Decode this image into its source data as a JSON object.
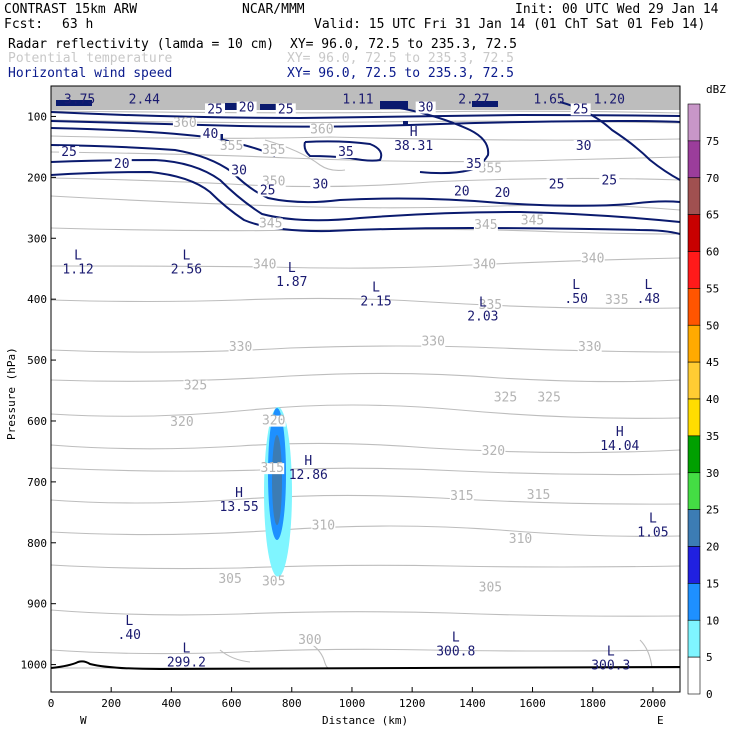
{
  "header": {
    "model": "CONTRAST 15km ARW",
    "center": "NCAR/MMM",
    "init": "Init: 00 UTC Wed 29 Jan 14",
    "fcst_label": "Fcst:",
    "fcst_value": "63 h",
    "valid": "Valid: 15 UTC Fri 31 Jan 14 (01 ChT Sat 01 Feb 14)",
    "fields": [
      {
        "name": "Radar reflectivity (lamda = 10 cm)",
        "xy": "XY=  96.0, 72.5 to 235.3, 72.5",
        "color": "#000000"
      },
      {
        "name": "Potential temperature",
        "xy": "XY=  96.0, 72.5 to 235.3, 72.5",
        "color": "#c8c8c8"
      },
      {
        "name": "Horizontal wind speed",
        "xy": "XY=  96.0, 72.5 to 235.3, 72.5",
        "color": "#0a1a8c"
      }
    ]
  },
  "chart_data": {
    "type": "cross-section",
    "xlabel": "Distance (km)",
    "ylabel": "Pressure (hPa)",
    "xlim": [
      0,
      2090
    ],
    "ylim": [
      50,
      1045
    ],
    "x_ticks": [
      "0",
      "200",
      "400",
      "600",
      "800",
      "1000",
      "1200",
      "1400",
      "1600",
      "1800",
      "2000"
    ],
    "y_ticks": [
      "100",
      "200",
      "300",
      "400",
      "500",
      "600",
      "700",
      "800",
      "900",
      "1000"
    ],
    "x_ends": {
      "left": "W",
      "right": "E"
    },
    "colorbar": {
      "unit": "dBZ",
      "levels": [
        "75",
        "70",
        "65",
        "60",
        "55",
        "50",
        "45",
        "40",
        "35",
        "30",
        "25",
        "20",
        "15",
        "10",
        "5",
        "0"
      ],
      "colors": [
        "#c896c8",
        "#9b3d9b",
        "#a05050",
        "#c80000",
        "#ff1a1a",
        "#ff5500",
        "#ffaa00",
        "#ffcc33",
        "#ffdd00",
        "#00a000",
        "#44dd44",
        "#3c7cb4",
        "#2020e0",
        "#1e90ff",
        "#7ff5ff",
        "#ffffff"
      ]
    },
    "wind_labels": [
      {
        "t": "25",
        "x": 545,
        "p": 95
      },
      {
        "t": "20",
        "x": 650,
        "p": 92
      },
      {
        "t": "25",
        "x": 780,
        "p": 95
      },
      {
        "t": "30",
        "x": 1245,
        "p": 92
      },
      {
        "t": "25",
        "x": 1760,
        "p": 95
      },
      {
        "t": "40",
        "x": 530,
        "p": 135
      },
      {
        "t": "25",
        "x": 60,
        "p": 165
      },
      {
        "t": "20",
        "x": 235,
        "p": 185
      },
      {
        "t": "35",
        "x": 980,
        "p": 165
      },
      {
        "t": "35",
        "x": 1405,
        "p": 185
      },
      {
        "t": "30",
        "x": 1770,
        "p": 155
      },
      {
        "t": "30",
        "x": 625,
        "p": 195
      },
      {
        "t": "30",
        "x": 895,
        "p": 218
      },
      {
        "t": "25",
        "x": 720,
        "p": 228
      },
      {
        "t": "20",
        "x": 1365,
        "p": 230
      },
      {
        "t": "20",
        "x": 1500,
        "p": 232
      },
      {
        "t": "25",
        "x": 1680,
        "p": 218
      },
      {
        "t": "25",
        "x": 1855,
        "p": 212
      }
    ],
    "theta_labels": [
      {
        "t": "360",
        "x": 445,
        "p": 117
      },
      {
        "t": "360",
        "x": 900,
        "p": 128
      },
      {
        "t": "355",
        "x": 600,
        "p": 155
      },
      {
        "t": "355",
        "x": 740,
        "p": 162
      },
      {
        "t": "355",
        "x": 1460,
        "p": 192
      },
      {
        "t": "350",
        "x": 740,
        "p": 213
      },
      {
        "t": "345",
        "x": 1445,
        "p": 285
      },
      {
        "t": "345",
        "x": 1600,
        "p": 277
      },
      {
        "t": "345",
        "x": 730,
        "p": 282
      },
      {
        "t": "340",
        "x": 710,
        "p": 350
      },
      {
        "t": "340",
        "x": 1440,
        "p": 350
      },
      {
        "t": "340",
        "x": 1800,
        "p": 340
      },
      {
        "t": "335",
        "x": 1460,
        "p": 416
      },
      {
        "t": "335",
        "x": 1880,
        "p": 408
      },
      {
        "t": "330",
        "x": 630,
        "p": 485
      },
      {
        "t": "330",
        "x": 1270,
        "p": 476
      },
      {
        "t": "330",
        "x": 1790,
        "p": 485
      },
      {
        "t": "325",
        "x": 480,
        "p": 548
      },
      {
        "t": "325",
        "x": 1510,
        "p": 568
      },
      {
        "t": "325",
        "x": 1655,
        "p": 568
      },
      {
        "t": "320",
        "x": 435,
        "p": 608
      },
      {
        "t": "320",
        "x": 740,
        "p": 606
      },
      {
        "t": "320",
        "x": 1470,
        "p": 656
      },
      {
        "t": "315",
        "x": 735,
        "p": 684
      },
      {
        "t": "315",
        "x": 1365,
        "p": 730
      },
      {
        "t": "315",
        "x": 1620,
        "p": 728
      },
      {
        "t": "310",
        "x": 905,
        "p": 778
      },
      {
        "t": "310",
        "x": 1560,
        "p": 800
      },
      {
        "t": "305",
        "x": 595,
        "p": 866
      },
      {
        "t": "305",
        "x": 740,
        "p": 870
      },
      {
        "t": "305",
        "x": 1460,
        "p": 880
      },
      {
        "t": "300",
        "x": 860,
        "p": 966
      }
    ],
    "top_band_labels": [
      {
        "t": "3.75",
        "x": 95,
        "p": 79
      },
      {
        "t": "2.44",
        "x": 310,
        "p": 79
      },
      {
        "t": "1.11",
        "x": 1020,
        "p": 79
      },
      {
        "t": "2.27",
        "x": 1405,
        "p": 79
      },
      {
        "t": "1.65",
        "x": 1655,
        "p": 79
      },
      {
        "t": "1.20",
        "x": 1855,
        "p": 79
      }
    ],
    "extrema": [
      {
        "k": "H",
        "v": "38.31",
        "x": 1205,
        "p": 155,
        "color": "#1a1a70"
      },
      {
        "k": "L",
        "v": "1.12",
        "x": 90,
        "p": 358,
        "color": "#1a1a70"
      },
      {
        "k": "L",
        "v": "2.56",
        "x": 450,
        "p": 358,
        "color": "#1a1a70"
      },
      {
        "k": "L",
        "v": "1.87",
        "x": 800,
        "p": 378,
        "color": "#1a1a70"
      },
      {
        "k": "L",
        "v": "2.15",
        "x": 1080,
        "p": 410,
        "color": "#1a1a70"
      },
      {
        "k": "L",
        "v": "2.03",
        "x": 1435,
        "p": 435,
        "color": "#1a1a70"
      },
      {
        "k": "L",
        "v": ".50",
        "x": 1745,
        "p": 406,
        "color": "#1a1a70"
      },
      {
        "k": "L",
        "v": ".48",
        "x": 1985,
        "p": 406,
        "color": "#1a1a70"
      },
      {
        "k": "H",
        "v": "12.86",
        "x": 855,
        "p": 695,
        "color": "#1a1a70"
      },
      {
        "k": "H",
        "v": "13.55",
        "x": 625,
        "p": 748,
        "color": "#1a1a70"
      },
      {
        "k": "H",
        "v": "14.04",
        "x": 1890,
        "p": 648,
        "color": "#1a1a70"
      },
      {
        "k": "L",
        "v": "1.05",
        "x": 2000,
        "p": 790,
        "color": "#1a1a70"
      },
      {
        "k": "L",
        "v": ".40",
        "x": 260,
        "p": 958,
        "color": "#1a1a70"
      },
      {
        "k": "L",
        "v": "299.2",
        "x": 450,
        "p": 1003,
        "color": "#b4b4b4"
      },
      {
        "k": "L",
        "v": "300.8",
        "x": 1345,
        "p": 985,
        "color": "#b4b4b4"
      },
      {
        "k": "L",
        "v": "300.3",
        "x": 1860,
        "p": 1008,
        "color": "#b4b4b4"
      }
    ]
  }
}
